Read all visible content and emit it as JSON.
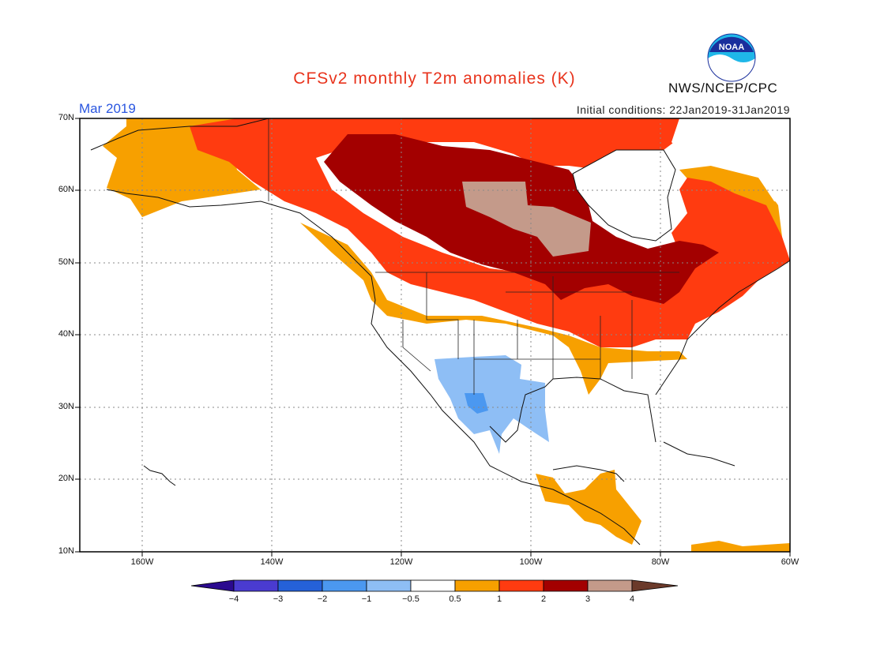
{
  "title": "CFSv2 monthly T2m anomalies (K)",
  "forecast_month": "Mar 2019",
  "initial_conditions": "Initial conditions: 22Jan2019-31Jan2019",
  "agency": "NWS/NCEP/CPC",
  "logo_text": "NOAA",
  "lat_labels": [
    "70N",
    "60N",
    "50N",
    "40N",
    "30N",
    "20N",
    "10N"
  ],
  "lon_labels": [
    "160W",
    "140W",
    "120W",
    "100W",
    "80W",
    "60W"
  ],
  "colorbar": {
    "tick_labels": [
      "−4",
      "−3",
      "−2",
      "−1",
      "−0.5",
      "0.5",
      "1",
      "2",
      "3",
      "4"
    ],
    "colors": [
      "#2b0a8f",
      "#4a3bd0",
      "#2561d8",
      "#4b98f0",
      "#8ebef5",
      "#ffffff",
      "#f7a000",
      "#ff3b10",
      "#a30000",
      "#c49a8a",
      "#6b3a2a"
    ]
  },
  "anomaly_regions": [
    {
      "name": "Central Canada",
      "category": "> 3 K"
    },
    {
      "name": "Northern Canada and Great Lakes",
      "category": "2 to 3 K"
    },
    {
      "name": "Alaska, Western Canada, Northeast US",
      "category": "1 to 2 K"
    },
    {
      "name": "Mid-Atlantic, Central America",
      "category": "0.5 to 1 K"
    },
    {
      "name": "Southwest US and Northern Mexico",
      "category": "-1 to -0.5 K"
    }
  ]
}
